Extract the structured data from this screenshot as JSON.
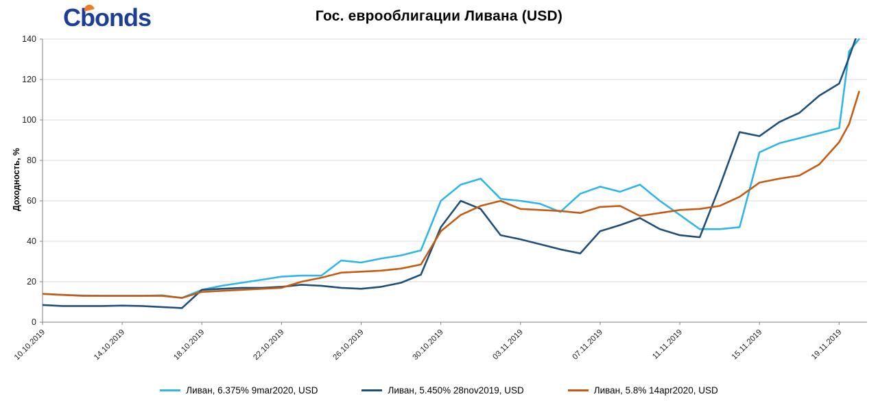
{
  "logo": {
    "text_c": "C",
    "text_rest": "bonds",
    "blue": "#1e3d96",
    "orange": "#f47b20"
  },
  "title": "Гос. еврооблигации Ливана (USD)",
  "y_axis_title": "Доходность, %",
  "colors": {
    "series1": "#2eb6e8",
    "series2": "#1f4e79",
    "series3": "#c55a11",
    "grid": "#d9d9d9",
    "axis": "#808080"
  },
  "legend": [
    {
      "label": "Ливан, 6.375% 9mar2020, USD",
      "color": "#2eb6e8"
    },
    {
      "label": "Ливан, 5.450% 28nov2019, USD",
      "color": "#1f4e79"
    },
    {
      "label": "Ливан, 5.8% 14apr2020, USD",
      "color": "#c55a11"
    }
  ],
  "chart_data": {
    "type": "line",
    "title": "Гос. еврооблигации Ливана (USD)",
    "ylabel": "Доходность, %",
    "ylim": [
      0,
      140
    ],
    "ytick_step": 20,
    "grid": true,
    "legend_position": "bottom",
    "x_unit": "days since 10.10.2019",
    "x": [
      0,
      1,
      2,
      3,
      4,
      5,
      6,
      7,
      8,
      9,
      10,
      11,
      12,
      13,
      14,
      15,
      16,
      17,
      18,
      19,
      20,
      21,
      22,
      23,
      24,
      25,
      26,
      27,
      28,
      29,
      30,
      31,
      32,
      33,
      34,
      35,
      36,
      37,
      38,
      39,
      40,
      40.5,
      41
    ],
    "x_ticks": [
      {
        "x": 0,
        "label": "10.10.2019"
      },
      {
        "x": 4,
        "label": "14.10.2019"
      },
      {
        "x": 8,
        "label": "18.10.2019"
      },
      {
        "x": 12,
        "label": "22.10.2019"
      },
      {
        "x": 16,
        "label": "26.10.2019"
      },
      {
        "x": 20,
        "label": "30.10.2019"
      },
      {
        "x": 24,
        "label": "03.11.2019"
      },
      {
        "x": 28,
        "label": "07.11.2019"
      },
      {
        "x": 32,
        "label": "11.11.2019"
      },
      {
        "x": 36,
        "label": "15.11.2019"
      },
      {
        "x": 40,
        "label": "19.11.2019"
      }
    ],
    "series": [
      {
        "name": "Ливан, 6.375% 9mar2020, USD",
        "color": "#2eb6e8",
        "values": [
          14,
          13.5,
          13.2,
          13,
          13,
          13,
          13.3,
          12,
          16,
          18,
          19.5,
          21,
          22.5,
          23,
          23,
          30.5,
          29.5,
          31.5,
          33,
          35.5,
          60,
          68,
          71,
          61,
          60,
          58.5,
          54.5,
          63.5,
          67,
          64.5,
          68,
          60,
          53,
          46,
          46,
          47,
          84,
          88.5,
          91,
          93.5,
          96,
          134,
          140
        ]
      },
      {
        "name": "Ливан, 5.450% 28nov2019, USD",
        "color": "#1f4e79",
        "values": [
          8.5,
          8,
          8,
          8,
          8.2,
          8,
          7.5,
          7,
          16,
          16.5,
          17,
          17,
          17.5,
          18.5,
          18,
          17,
          16.5,
          17.5,
          19.5,
          23.5,
          47,
          60,
          56,
          43,
          41,
          38.5,
          36,
          34,
          45,
          48,
          51.5,
          46,
          43,
          42,
          67,
          94,
          92,
          99,
          103.5,
          112,
          118,
          131,
          145
        ]
      },
      {
        "name": "Ливан, 5.8% 14apr2020, USD",
        "color": "#c55a11",
        "values": [
          14,
          13.5,
          13,
          13,
          13,
          13,
          13,
          12,
          15,
          15.5,
          16,
          16.5,
          17,
          20,
          22,
          24.5,
          25,
          25.5,
          26.5,
          28.5,
          45,
          53,
          57.5,
          60,
          56,
          55.5,
          55,
          54,
          57,
          57.5,
          52.5,
          54,
          55.5,
          56,
          57.5,
          62,
          69,
          71,
          72.5,
          78,
          89,
          98,
          114
        ]
      }
    ]
  }
}
